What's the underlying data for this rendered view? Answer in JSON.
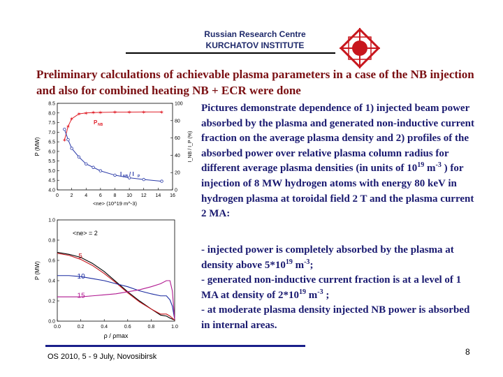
{
  "header": {
    "org_line1": "Russian Research Centre",
    "org_line2": "KURCHATOV INSTITUTE"
  },
  "title": "Preliminary calculations of achievable plasma parameters in a case of the NB injection and also for combined heating NB + ECR were done",
  "description": {
    "part1": "Pictures demonstrate dependence of 1) injected beam power absorbed by the plasma and generated non-inductive current fraction on the average plasma density and 2) profiles of the absorbed power over relative plasma column radius for different average plasma densities (in units of 10",
    "sup": "19",
    "part2": " m",
    "sup2": "-3",
    "part3": " ) for injection of 8 MW hydrogen atoms with energy 80 keV in hydrogen plasma at toroidal field 2 T and the plasma current 2 MA:"
  },
  "bullets": {
    "b1_a": "- injected power is completely absorbed by the plasma at density above 5*10",
    "b1_sup": "19",
    "b1_b": " m",
    "b1_sup2": "-3",
    "b1_c": ";",
    "b2_a": "- generated non-inductive current fraction is at a level of 1 MA at density of 2*10",
    "b2_sup": "19",
    "b2_b": " m",
    "b2_sup2": "-3",
    "b2_c": " ;",
    "b3": "- at moderate plasma density injected NB power is absorbed in internal areas."
  },
  "footer": {
    "conference": "OS 2010, 5 - 9 July, Novosibirsk",
    "page": "8"
  },
  "colors": {
    "title": "#7a0f12",
    "body_text": "#1a1a70",
    "footer_rule": "#1a1f8a",
    "logo_red": "#c8161d"
  },
  "chart_data": [
    {
      "type": "line",
      "xlabel": "<ne> (10^19 m^-3)",
      "ylabel_left": "P (MW)",
      "ylabel_right": "I_NB / I_P (%)",
      "xlim": [
        0,
        16
      ],
      "ylim_left": [
        4.0,
        8.5
      ],
      "ylim_right": [
        0,
        100
      ],
      "x_ticks": [
        "0",
        "2",
        "4",
        "6",
        "8",
        "10",
        "12",
        "14",
        "16"
      ],
      "y_left_ticks": [
        "4.0",
        "4.5",
        "5.0",
        "5.5",
        "6.0",
        "6.5",
        "7.0",
        "7.5",
        "8.0",
        "8.5"
      ],
      "y_right_ticks": [
        "0",
        "20",
        "40",
        "60",
        "80",
        "100"
      ],
      "series": [
        {
          "name": "P_NB",
          "axis": "left",
          "color": "#e0202a",
          "x": [
            1,
            1.5,
            2,
            3,
            4,
            5,
            6,
            8,
            10,
            12,
            14.5
          ],
          "values": [
            6.6,
            7.3,
            7.7,
            7.95,
            8.0,
            8.02,
            8.03,
            8.04,
            8.04,
            8.05,
            8.05
          ]
        },
        {
          "name": "I_NB / I_P",
          "axis": "right",
          "color": "#2a3aa8",
          "x": [
            1,
            1.5,
            2,
            3,
            4,
            5,
            6,
            8,
            10,
            12,
            14.5
          ],
          "values": [
            70,
            58,
            48,
            38,
            30,
            26,
            22,
            17,
            14,
            12,
            10
          ]
        }
      ],
      "labels": {
        "pnb": "P",
        "pnb_sub": "NB",
        "ratio": "I",
        "ratio_sub1": "NB",
        "ratio_sep": " / I",
        "ratio_sub2": "P"
      }
    },
    {
      "type": "line",
      "xlabel": "ρ / ρmax",
      "ylabel": "P (MW)",
      "annotation": "<ne> = 2",
      "xlim": [
        0,
        1.0
      ],
      "ylim": [
        0,
        1.0
      ],
      "x_ticks": [
        "0.0",
        "0.2",
        "0.4",
        "0.6",
        "0.8",
        "1.0"
      ],
      "y_ticks": [
        "0.0",
        "0.2",
        "0.4",
        "0.6",
        "0.8",
        "1.0"
      ],
      "series": [
        {
          "name": "2",
          "color": "#000000",
          "x": [
            0,
            0.1,
            0.2,
            0.3,
            0.4,
            0.5,
            0.6,
            0.7,
            0.8,
            0.88,
            0.93,
            0.96,
            0.98,
            1.0
          ],
          "values": [
            0.68,
            0.66,
            0.63,
            0.57,
            0.49,
            0.39,
            0.29,
            0.2,
            0.12,
            0.06,
            0.05,
            0.03,
            0.02,
            0.01
          ]
        },
        {
          "name": "5",
          "color": "#c8161d",
          "x": [
            0,
            0.1,
            0.2,
            0.3,
            0.4,
            0.5,
            0.6,
            0.7,
            0.8,
            0.88,
            0.93,
            0.96,
            0.98,
            1.0
          ],
          "values": [
            0.67,
            0.65,
            0.61,
            0.55,
            0.47,
            0.38,
            0.28,
            0.19,
            0.12,
            0.07,
            0.07,
            0.05,
            0.03,
            0.01
          ]
        },
        {
          "name": "10",
          "color": "#1a2aa0",
          "x": [
            0,
            0.1,
            0.2,
            0.3,
            0.4,
            0.5,
            0.6,
            0.7,
            0.8,
            0.88,
            0.93,
            0.96,
            0.98,
            1.0
          ],
          "values": [
            0.45,
            0.45,
            0.44,
            0.42,
            0.4,
            0.37,
            0.34,
            0.3,
            0.27,
            0.25,
            0.25,
            0.21,
            0.15,
            0.02
          ]
        },
        {
          "name": "15",
          "color": "#b01890",
          "x": [
            0,
            0.1,
            0.2,
            0.3,
            0.4,
            0.5,
            0.6,
            0.7,
            0.8,
            0.88,
            0.93,
            0.96,
            0.98,
            1.0
          ],
          "values": [
            0.24,
            0.24,
            0.24,
            0.25,
            0.26,
            0.27,
            0.29,
            0.31,
            0.34,
            0.37,
            0.4,
            0.4,
            0.3,
            0.02
          ]
        }
      ]
    }
  ]
}
